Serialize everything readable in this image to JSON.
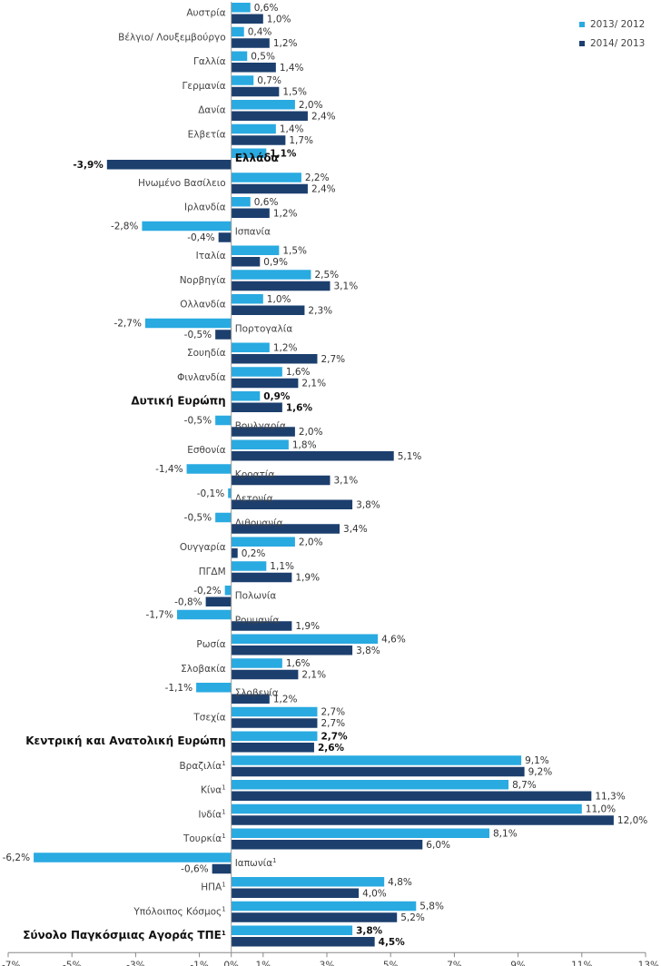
{
  "chart_data": {
    "type": "bar",
    "orientation": "horizontal",
    "categories": [
      "Αυστρία",
      "Βέλγιο/ Λουξεμβούργο",
      "Γαλλία",
      "Γερμανία",
      "Δανία",
      "Ελβετία",
      "Ελλάδα",
      "Ηνωμένο Βασίλειο",
      "Ιρλανδία",
      "Ισπανία",
      "Ιταλία",
      "Νορβηγία",
      "Ολλανδία",
      "Πορτογαλία",
      "Σουηδία",
      "Φινλανδία",
      "Δυτική Ευρώπη",
      "Βουλγαρία",
      "Εσθονία",
      "Κροατία",
      "Λετονία",
      "Λιθουανία",
      "Ουγγαρία",
      "ΠΓΔΜ",
      "Πολωνία",
      "Ρουμανία",
      "Ρωσία",
      "Σλοβακία",
      "Σλοβενία",
      "Τσεχία",
      "Κεντρική και Ανατολική Ευρώπη",
      "Βραζιλία",
      "Κίνα",
      "Ινδία",
      "Τουρκία",
      "Ιαπωνία",
      "ΗΠΑ",
      "Υπόλοιπος Κόσμος",
      "Σύνολο Παγκόσμιας Αγοράς ΤΠΕ"
    ],
    "footnote_marks": [
      "",
      "",
      "",
      "",
      "",
      "",
      "",
      "",
      "",
      "",
      "",
      "",
      "",
      "",
      "",
      "",
      "",
      "",
      "",
      "",
      "",
      "",
      "",
      "",
      "",
      "",
      "",
      "",
      "",
      "",
      "",
      "1",
      "1",
      "1",
      "1",
      "1",
      "1",
      "1",
      "1"
    ],
    "bold_categories": [
      "Ελλάδα",
      "Δυτική Ευρώπη",
      "Κεντρική και Ανατολική Ευρώπη",
      "Σύνολο Παγκόσμιας Αγοράς ΤΠΕ"
    ],
    "series": [
      {
        "name": "2013/ 2012",
        "color": "#29aae1",
        "values": [
          0.6,
          0.4,
          0.5,
          0.7,
          2.0,
          1.4,
          1.1,
          2.2,
          0.6,
          -2.8,
          1.5,
          2.5,
          1.0,
          -2.7,
          1.2,
          1.6,
          0.9,
          -0.5,
          1.8,
          -1.4,
          -0.1,
          -0.5,
          2.0,
          1.1,
          -0.2,
          -1.7,
          4.6,
          1.6,
          -1.1,
          2.7,
          2.7,
          9.1,
          8.7,
          11.0,
          8.1,
          -6.2,
          4.8,
          5.8,
          3.8
        ],
        "labels": [
          "0,6%",
          "0,4%",
          "0,5%",
          "0,7%",
          "2,0%",
          "1,4%",
          "1,1%",
          "2,2%",
          "0,6%",
          "-2,8%",
          "1,5%",
          "2,5%",
          "1,0%",
          "-2,7%",
          "1,2%",
          "1,6%",
          "0,9%",
          "-0,5%",
          "1,8%",
          "-1,4%",
          "-0,1%",
          "-0,5%",
          "2,0%",
          "1,1%",
          "-0,2%",
          "-1,7%",
          "4,6%",
          "1,6%",
          "-1,1%",
          "2,7%",
          "2,7%",
          "9,1%",
          "8,7%",
          "11,0%",
          "8,1%",
          "-6,2%",
          "4,8%",
          "5,8%",
          "3,8%"
        ]
      },
      {
        "name": "2014/ 2013",
        "color": "#1c3f6e",
        "values": [
          1.0,
          1.2,
          1.4,
          1.5,
          2.4,
          1.7,
          -3.9,
          2.4,
          1.2,
          -0.4,
          0.9,
          3.1,
          2.3,
          -0.5,
          2.7,
          2.1,
          1.6,
          2.0,
          5.1,
          3.1,
          3.8,
          3.4,
          0.2,
          1.9,
          -0.8,
          1.9,
          3.8,
          2.1,
          1.2,
          2.7,
          2.6,
          9.2,
          11.3,
          12.0,
          6.0,
          -0.6,
          4.0,
          5.2,
          4.5
        ],
        "labels": [
          "1,0%",
          "1,2%",
          "1,4%",
          "1,5%",
          "2,4%",
          "1,7%",
          "-3,9%",
          "2,4%",
          "1,2%",
          "-0,4%",
          "0,9%",
          "3,1%",
          "2,3%",
          "-0,5%",
          "2,7%",
          "2,1%",
          "1,6%",
          "2,0%",
          "5,1%",
          "3,1%",
          "3,8%",
          "3,4%",
          "0,2%",
          "1,9%",
          "-0,8%",
          "1,9%",
          "3,8%",
          "2,1%",
          "1,2%",
          "2,7%",
          "2,6%",
          "9,2%",
          "11,3%",
          "12,0%",
          "6,0%",
          "-0,6%",
          "4,0%",
          "5,2%",
          "4,5%"
        ]
      }
    ],
    "xlim": [
      -7,
      13
    ],
    "x_ticks": [
      -7,
      -5,
      -3,
      -1,
      0,
      1,
      3,
      5,
      7,
      9,
      11,
      13
    ],
    "x_tick_labels": [
      "-7%",
      "-5%",
      "-3%",
      "-1%",
      "0%",
      "1%",
      "3%",
      "5%",
      "7%",
      "9%",
      "11%",
      "13%"
    ],
    "legend_position": "top-right",
    "grid": false,
    "title": "",
    "xlabel": "",
    "ylabel": ""
  }
}
